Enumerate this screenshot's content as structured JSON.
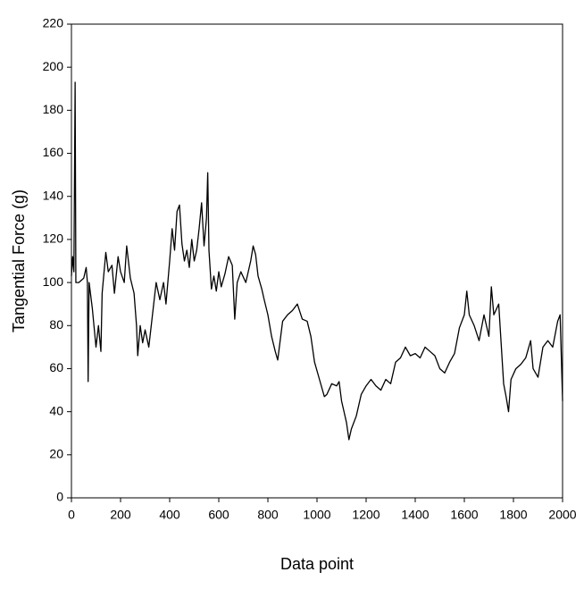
{
  "chart_data": {
    "type": "line",
    "xlabel": "Data point",
    "ylabel": "Tangential Force (g)",
    "x": [
      0,
      5,
      10,
      15,
      18,
      30,
      50,
      60,
      65,
      68,
      72,
      85,
      100,
      110,
      120,
      125,
      140,
      150,
      165,
      175,
      190,
      200,
      215,
      225,
      240,
      255,
      265,
      270,
      280,
      290,
      300,
      315,
      330,
      345,
      360,
      375,
      385,
      400,
      410,
      420,
      430,
      440,
      450,
      460,
      470,
      480,
      490,
      500,
      510,
      520,
      530,
      540,
      550,
      555,
      560,
      570,
      580,
      590,
      600,
      610,
      625,
      640,
      655,
      665,
      675,
      690,
      710,
      730,
      740,
      750,
      760,
      775,
      785,
      800,
      815,
      830,
      840,
      850,
      860,
      880,
      900,
      920,
      940,
      960,
      975,
      990,
      1010,
      1030,
      1040,
      1060,
      1080,
      1090,
      1100,
      1110,
      1120,
      1130,
      1140,
      1160,
      1180,
      1200,
      1220,
      1240,
      1260,
      1280,
      1300,
      1320,
      1340,
      1360,
      1380,
      1400,
      1420,
      1440,
      1460,
      1480,
      1500,
      1520,
      1540,
      1560,
      1580,
      1600,
      1610,
      1620,
      1640,
      1660,
      1680,
      1700,
      1710,
      1720,
      1740,
      1760,
      1770,
      1780,
      1790,
      1810,
      1830,
      1850,
      1870,
      1880,
      1900,
      1920,
      1940,
      1960,
      1980,
      1990,
      2000
    ],
    "values": [
      103,
      112,
      105,
      193,
      100,
      100,
      102,
      107,
      100,
      54,
      100,
      88,
      70,
      80,
      68,
      95,
      114,
      105,
      108,
      95,
      112,
      105,
      100,
      117,
      102,
      95,
      80,
      66,
      80,
      72,
      78,
      70,
      85,
      100,
      92,
      100,
      90,
      110,
      125,
      115,
      133,
      136,
      118,
      110,
      115,
      107,
      120,
      110,
      115,
      125,
      137,
      117,
      130,
      151,
      115,
      97,
      103,
      96,
      105,
      98,
      104,
      112,
      108,
      83,
      100,
      105,
      100,
      110,
      117,
      113,
      103,
      97,
      92,
      85,
      75,
      68,
      64,
      73,
      82,
      85,
      87,
      90,
      83,
      82,
      75,
      63,
      55,
      47,
      48,
      53,
      52,
      54,
      45,
      40,
      35,
      27,
      32,
      38,
      48,
      52,
      55,
      52,
      50,
      55,
      53,
      63,
      65,
      70,
      66,
      67,
      65,
      70,
      68,
      66,
      60,
      58,
      63,
      67,
      79,
      85,
      96,
      85,
      80,
      73,
      85,
      75,
      98,
      85,
      90,
      53,
      47,
      40,
      55,
      60,
      62,
      65,
      73,
      60,
      56,
      70,
      73,
      70,
      82,
      85,
      45
    ],
    "color": "#000000",
    "xlim": [
      0,
      2000
    ],
    "xticks": [
      0,
      200,
      400,
      600,
      800,
      1000,
      1200,
      1400,
      1600,
      1800,
      2000
    ],
    "ylim": [
      0,
      220
    ],
    "yticks": [
      0,
      20,
      40,
      60,
      80,
      100,
      120,
      140,
      160,
      180,
      200,
      220
    ]
  }
}
